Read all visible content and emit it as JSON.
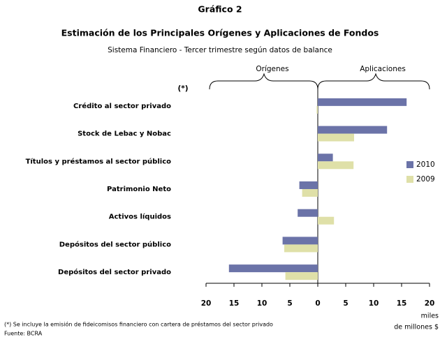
{
  "chart_data": {
    "type": "hbar",
    "kicker": "Gráfico 2",
    "title": "Estimación de los Principales Orígenes y Aplicaciones de Fondos",
    "subtitle": "Sistema Financiero - Tercer trimestre según datos de balance",
    "left_group_label": "Orígenes",
    "right_group_label": "Aplicaciones",
    "note_marker": "(*)",
    "categories": [
      "Crédito al sector privado",
      "Stock de Lebac y Nobac",
      "Títulos y préstamos al sector público",
      "Patrimonio Neto",
      "Activos líquidos",
      "Depósitos del sector público",
      "Depósitos del sector privado"
    ],
    "series": [
      {
        "name": "2010",
        "color": "#6b73a8",
        "values": [
          15.9,
          12.4,
          2.7,
          -3.3,
          -3.6,
          -6.3,
          -15.9
        ]
      },
      {
        "name": "2009",
        "color": "#dfe0a8",
        "values": [
          -0.2,
          6.5,
          6.4,
          -2.8,
          2.9,
          -6.0,
          -5.8
        ]
      }
    ],
    "xlim": [
      -20,
      20
    ],
    "xticks": [
      {
        "value": -20,
        "label": "20"
      },
      {
        "value": -15,
        "label": "15"
      },
      {
        "value": -10,
        "label": "10"
      },
      {
        "value": -5,
        "label": "5"
      },
      0,
      5,
      10,
      15,
      20
    ],
    "xlabel": [
      "miles",
      "de millones $"
    ],
    "legend": "right",
    "footnote": "(*) Se incluye la emisión de fideicomisos financiero con cartera de préstamos del sector privado",
    "source": "Fuente: BCRA"
  }
}
